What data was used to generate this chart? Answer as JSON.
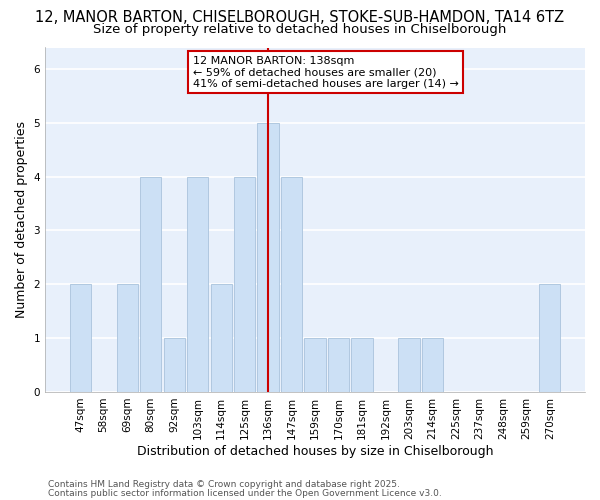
{
  "title_line1": "12, MANOR BARTON, CHISELBOROUGH, STOKE-SUB-HAMDON, TA14 6TZ",
  "title_line2": "Size of property relative to detached houses in Chiselborough",
  "xlabel": "Distribution of detached houses by size in Chiselborough",
  "ylabel": "Number of detached properties",
  "categories": [
    "47sqm",
    "58sqm",
    "69sqm",
    "80sqm",
    "92sqm",
    "103sqm",
    "114sqm",
    "125sqm",
    "136sqm",
    "147sqm",
    "159sqm",
    "170sqm",
    "181sqm",
    "192sqm",
    "203sqm",
    "214sqm",
    "225sqm",
    "237sqm",
    "248sqm",
    "259sqm",
    "270sqm"
  ],
  "values": [
    2,
    0,
    2,
    4,
    1,
    4,
    2,
    4,
    5,
    4,
    1,
    1,
    1,
    0,
    1,
    1,
    0,
    0,
    0,
    0,
    2
  ],
  "bar_color": "#cce0f5",
  "bar_edge_color": "#b0c8e0",
  "marker_index": 8,
  "marker_color": "#cc0000",
  "annotation_line1": "12 MANOR BARTON: 138sqm",
  "annotation_line2": "← 59% of detached houses are smaller (20)",
  "annotation_line3": "41% of semi-detached houses are larger (14) →",
  "ylim": [
    0,
    6.4
  ],
  "yticks": [
    0,
    1,
    2,
    3,
    4,
    5,
    6
  ],
  "footnote_line1": "Contains HM Land Registry data © Crown copyright and database right 2025.",
  "footnote_line2": "Contains public sector information licensed under the Open Government Licence v3.0.",
  "fig_background": "#ffffff",
  "plot_background": "#e8f0fb",
  "grid_color": "#ffffff",
  "title_fontsize": 10.5,
  "subtitle_fontsize": 9.5,
  "axis_label_fontsize": 9,
  "tick_fontsize": 7.5,
  "annotation_fontsize": 8,
  "footnote_fontsize": 6.5
}
